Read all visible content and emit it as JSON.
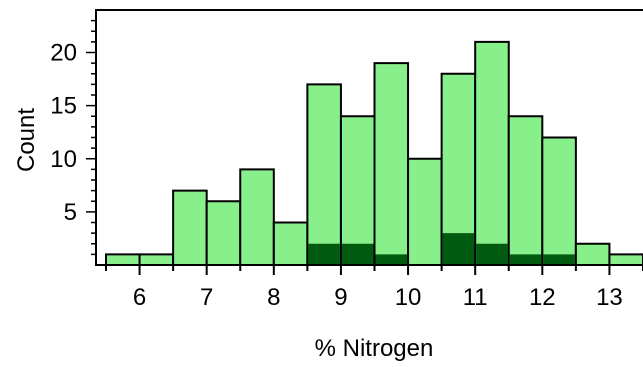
{
  "chart_data": {
    "type": "bar",
    "title": "",
    "xlabel": "% Nitrogen",
    "ylabel": "Count",
    "xlim": [
      5.5,
      13.5
    ],
    "ylim": [
      0,
      24
    ],
    "bin_width": 0.5,
    "bin_starts": [
      5.5,
      6.0,
      6.5,
      7.0,
      7.5,
      8.0,
      8.5,
      9.0,
      9.5,
      10.0,
      10.5,
      11.0,
      11.5,
      12.0,
      12.5,
      13.0
    ],
    "series": [
      {
        "values": [
          1,
          1,
          7,
          6,
          9,
          4,
          17,
          14,
          19,
          10,
          18,
          21,
          14,
          12,
          2,
          1
        ]
      },
      {
        "values": [
          0,
          0,
          0,
          0,
          0,
          0,
          2,
          2,
          1,
          0,
          3,
          2,
          1,
          1,
          0,
          0
        ]
      }
    ],
    "xticks": [
      6,
      7,
      8,
      9,
      10,
      11,
      12,
      13
    ],
    "yticks": [
      5,
      10,
      15,
      20
    ],
    "colors": {
      "total": "#88f08a",
      "subset": "#005a0f",
      "edge": "#000000"
    },
    "grid": false,
    "legend": "none"
  }
}
